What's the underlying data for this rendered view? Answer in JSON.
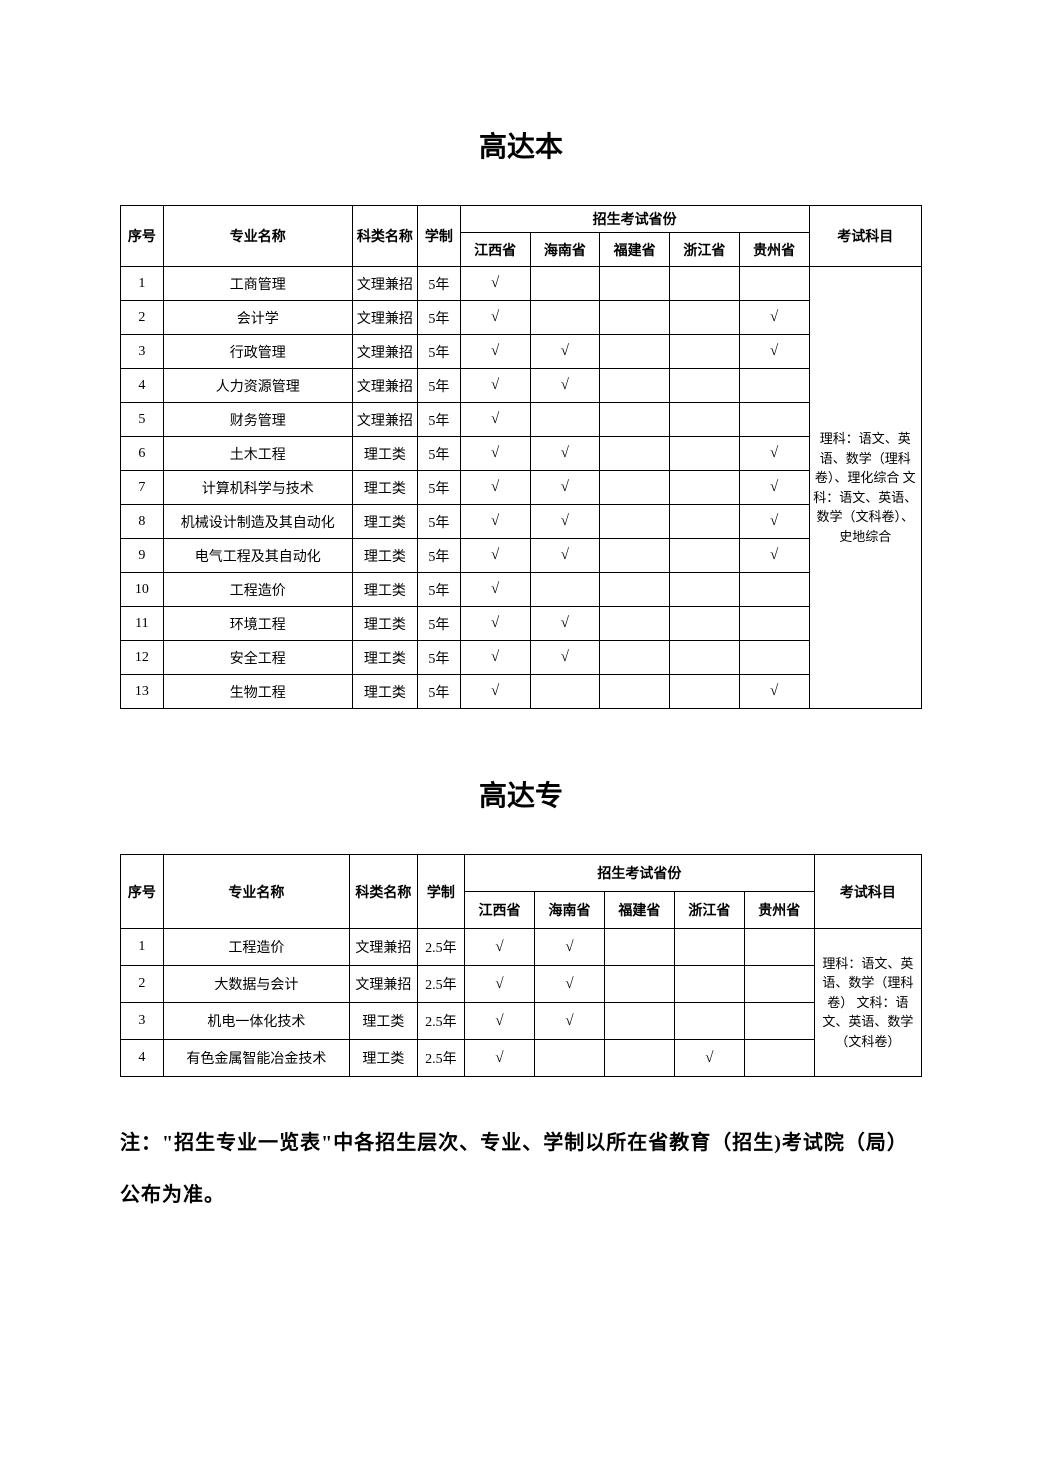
{
  "section1": {
    "title": "高达本",
    "headers": {
      "seq": "序号",
      "major": "专业名称",
      "cat": "科类名称",
      "dur": "学制",
      "provGroup": "招生考试省份",
      "provs": [
        "江西省",
        "海南省",
        "福建省",
        "浙江省",
        "贵州省"
      ],
      "subj": "考试科目"
    },
    "subjects": "理科：语文、英语、数学（理科卷）、理化综合\n文科：语文、英语、数学（文科卷）、史地综合",
    "rows": [
      {
        "n": "1",
        "major": "工商管理",
        "cat": "文理兼招",
        "dur": "5年",
        "p": [
          "√",
          "",
          "",
          "",
          ""
        ]
      },
      {
        "n": "2",
        "major": "会计学",
        "cat": "文理兼招",
        "dur": "5年",
        "p": [
          "√",
          "",
          "",
          "",
          "√"
        ]
      },
      {
        "n": "3",
        "major": "行政管理",
        "cat": "文理兼招",
        "dur": "5年",
        "p": [
          "√",
          "√",
          "",
          "",
          "√"
        ]
      },
      {
        "n": "4",
        "major": "人力资源管理",
        "cat": "文理兼招",
        "dur": "5年",
        "p": [
          "√",
          "√",
          "",
          "",
          ""
        ]
      },
      {
        "n": "5",
        "major": "财务管理",
        "cat": "文理兼招",
        "dur": "5年",
        "p": [
          "√",
          "",
          "",
          "",
          ""
        ]
      },
      {
        "n": "6",
        "major": "土木工程",
        "cat": "理工类",
        "dur": "5年",
        "p": [
          "√",
          "√",
          "",
          "",
          "√"
        ]
      },
      {
        "n": "7",
        "major": "计算机科学与技术",
        "cat": "理工类",
        "dur": "5年",
        "p": [
          "√",
          "√",
          "",
          "",
          "√"
        ]
      },
      {
        "n": "8",
        "major": "机械设计制造及其自动化",
        "cat": "理工类",
        "dur": "5年",
        "p": [
          "√",
          "√",
          "",
          "",
          "√"
        ]
      },
      {
        "n": "9",
        "major": "电气工程及其自动化",
        "cat": "理工类",
        "dur": "5年",
        "p": [
          "√",
          "√",
          "",
          "",
          "√"
        ]
      },
      {
        "n": "10",
        "major": "工程造价",
        "cat": "理工类",
        "dur": "5年",
        "p": [
          "√",
          "",
          "",
          "",
          ""
        ]
      },
      {
        "n": "11",
        "major": "环境工程",
        "cat": "理工类",
        "dur": "5年",
        "p": [
          "√",
          "√",
          "",
          "",
          ""
        ]
      },
      {
        "n": "12",
        "major": "安全工程",
        "cat": "理工类",
        "dur": "5年",
        "p": [
          "√",
          "√",
          "",
          "",
          ""
        ]
      },
      {
        "n": "13",
        "major": "生物工程",
        "cat": "理工类",
        "dur": "5年",
        "p": [
          "√",
          "",
          "",
          "",
          "√"
        ]
      }
    ]
  },
  "section2": {
    "title": "高达专",
    "headers": {
      "seq": "序号",
      "major": "专业名称",
      "cat": "科类名称",
      "dur": "学制",
      "provGroup": "招生考试省份",
      "provs": [
        "江西省",
        "海南省",
        "福建省",
        "浙江省",
        "贵州省"
      ],
      "subj": "考试科目"
    },
    "subjects": "理科：语文、英语、数学（理科卷）\n文科：语文、英语、数学（文科卷）",
    "rows": [
      {
        "n": "1",
        "major": "工程造价",
        "cat": "文理兼招",
        "dur": "2.5年",
        "p": [
          "√",
          "√",
          "",
          "",
          ""
        ]
      },
      {
        "n": "2",
        "major": "大数据与会计",
        "cat": "文理兼招",
        "dur": "2.5年",
        "p": [
          "√",
          "√",
          "",
          "",
          ""
        ]
      },
      {
        "n": "3",
        "major": "机电一体化技术",
        "cat": "理工类",
        "dur": "2.5年",
        "p": [
          "√",
          "√",
          "",
          "",
          ""
        ]
      },
      {
        "n": "4",
        "major": "有色金属智能冶金技术",
        "cat": "理工类",
        "dur": "2.5年",
        "p": [
          "√",
          "",
          "",
          "√",
          ""
        ]
      }
    ]
  },
  "note": "注：\"招生专业一览表\"中各招生层次、专业、学制以所在省教育（招生)考试院（局）公布为准。"
}
